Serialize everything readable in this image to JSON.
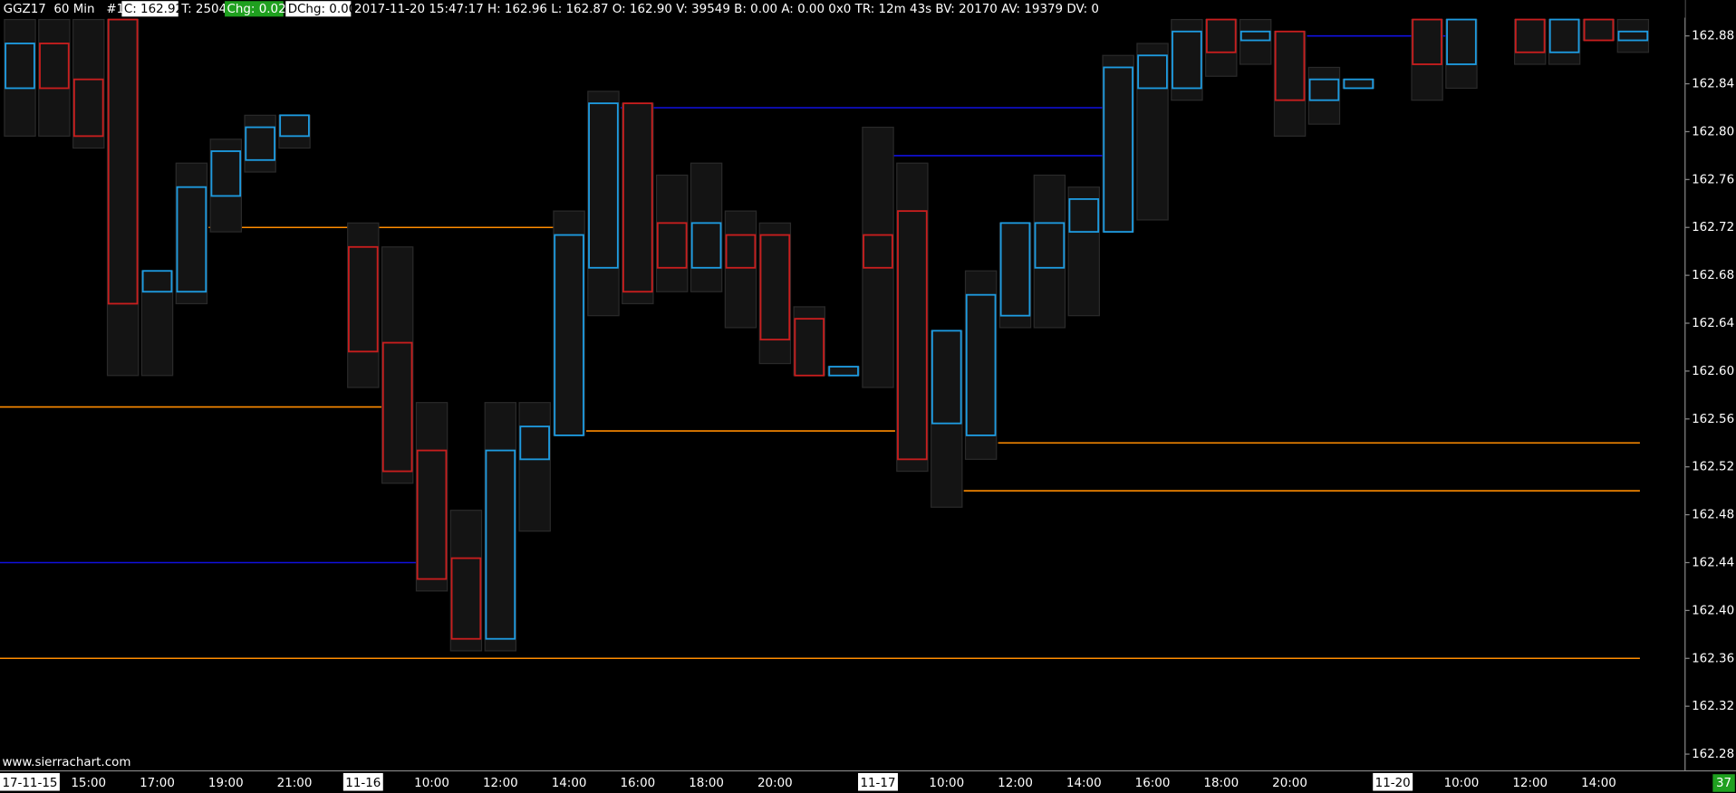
{
  "chart_data": {
    "type": "footprint",
    "header": [
      "GGZ17  60 Min   #1",
      "C: 162.92",
      "T: 2504",
      "Chg: 0.02",
      "DChg: 0.00",
      "2017-11-20 15:47:17 H: 162.96 L: 162.87 O: 162.90 V: 39549 B: 0.00 A: 0.00 0x0 TR: 12m 43s BV: 20170 AV: 19379 DV: 0"
    ],
    "watermark": "www.sierrachart.com",
    "bar_count_label": "37",
    "categories": [
      "17-11-15",
      null,
      "15:00",
      null,
      "17:00",
      null,
      "19:00",
      null,
      "21:00",
      null,
      "11-16",
      null,
      "10:00",
      null,
      "12:00",
      null,
      "14:00",
      null,
      "16:00",
      null,
      "18:00",
      null,
      "20:00",
      null,
      null,
      "11-17",
      null,
      "10:00",
      null,
      "12:00",
      null,
      "14:00",
      null,
      "16:00",
      null,
      "18:00",
      null,
      "20:00",
      null,
      null,
      "11-20",
      null,
      "10:00",
      null,
      "12:00",
      null,
      "14:00",
      null
    ],
    "date_labels": [
      "17-11-15",
      "11-16",
      "11-17",
      "11-20"
    ],
    "open": [
      162.84,
      162.87,
      162.84,
      162.89,
      162.67,
      162.67,
      162.75,
      162.78,
      162.8,
      null,
      162.7,
      162.62,
      162.53,
      162.44,
      162.38,
      162.53,
      162.55,
      162.69,
      162.82,
      162.72,
      162.69,
      162.71,
      162.71,
      162.64,
      162.6,
      162.71,
      162.73,
      162.56,
      162.55,
      162.65,
      162.69,
      162.72,
      162.72,
      162.84,
      162.84,
      162.89,
      162.88,
      162.88,
      162.83,
      162.84,
      null,
      162.89,
      162.86,
      null,
      162.89,
      162.87,
      162.89,
      162.88
    ],
    "high": [
      162.89,
      162.89,
      162.89,
      162.89,
      162.68,
      162.77,
      162.79,
      162.81,
      162.81,
      null,
      162.72,
      162.7,
      162.57,
      162.48,
      162.57,
      162.57,
      162.73,
      162.83,
      162.82,
      162.76,
      162.77,
      162.73,
      162.72,
      162.65,
      162.6,
      162.8,
      162.77,
      162.63,
      162.68,
      162.72,
      162.76,
      162.75,
      162.86,
      162.87,
      162.89,
      162.89,
      162.89,
      162.88,
      162.85,
      162.84,
      null,
      162.89,
      162.89,
      null,
      162.89,
      162.89,
      162.89,
      162.89
    ],
    "low": [
      162.8,
      162.8,
      162.79,
      162.6,
      162.6,
      162.66,
      162.72,
      162.77,
      162.79,
      null,
      162.59,
      162.51,
      162.42,
      162.37,
      162.37,
      162.47,
      162.55,
      162.65,
      162.66,
      162.67,
      162.67,
      162.64,
      162.61,
      162.6,
      162.6,
      162.59,
      162.52,
      162.49,
      162.53,
      162.64,
      162.64,
      162.65,
      162.72,
      162.73,
      162.83,
      162.85,
      162.86,
      162.8,
      162.81,
      162.84,
      null,
      162.83,
      162.84,
      null,
      162.86,
      162.86,
      162.88,
      162.87
    ],
    "close": [
      162.87,
      162.84,
      162.8,
      162.66,
      162.68,
      162.75,
      162.78,
      162.8,
      162.81,
      null,
      162.62,
      162.52,
      162.43,
      162.38,
      162.53,
      162.55,
      162.71,
      162.82,
      162.67,
      162.69,
      162.72,
      162.69,
      162.63,
      162.6,
      162.6,
      162.69,
      162.53,
      162.63,
      162.66,
      162.72,
      162.72,
      162.74,
      162.85,
      162.86,
      162.88,
      162.87,
      162.88,
      162.83,
      162.84,
      162.84,
      null,
      162.86,
      162.89,
      null,
      162.87,
      162.89,
      162.88,
      162.88
    ],
    "up_color": "#1e9be0",
    "down_color": "#c81e1e",
    "levels": [
      {
        "value": 162.72,
        "start": 5.5,
        "end": 15.9,
        "color": "#ff8c00"
      },
      {
        "value": 162.57,
        "start": -0.6,
        "end": 10.6,
        "color": "#ff8c00"
      },
      {
        "value": 162.55,
        "start": 16.5,
        "end": 25.5,
        "color": "#ff8c00"
      },
      {
        "value": 162.54,
        "start": 28.5,
        "end": 47.2,
        "color": "#ff8c00"
      },
      {
        "value": 162.5,
        "start": 27.5,
        "end": 47.2,
        "color": "#ff8c00"
      },
      {
        "value": 162.36,
        "start": -0.6,
        "end": 47.2,
        "color": "#ff8c00"
      },
      {
        "value": 162.44,
        "start": -0.6,
        "end": 11.7,
        "color": "#1010e0"
      },
      {
        "value": 162.82,
        "start": 17.5,
        "end": 31.7,
        "color": "#1010e0"
      },
      {
        "value": 162.78,
        "start": 24.8,
        "end": 31.7,
        "color": "#1010e0"
      },
      {
        "value": 162.88,
        "start": 37.5,
        "end": 41.8,
        "color": "#1010e0"
      }
    ],
    "ylim": [
      162.266,
      162.91
    ],
    "yticks": [
      162.28,
      162.32,
      162.36,
      {
        "value": 162.4,
        "label": "162.40"
      },
      162.44,
      162.48,
      162.52,
      162.56,
      {
        "value": 162.6,
        "label": "162.60"
      },
      162.64,
      162.68,
      162.72,
      162.76,
      {
        "value": 162.8,
        "label": "162.80"
      },
      162.84,
      162.88
    ]
  }
}
